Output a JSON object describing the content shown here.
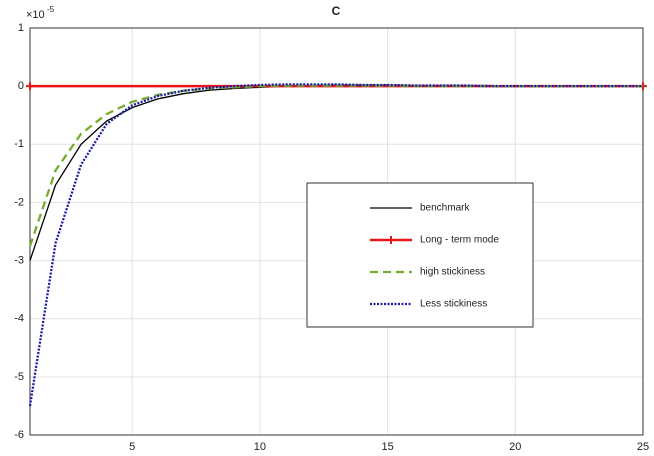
{
  "chart_data": {
    "type": "line",
    "title": "C",
    "y_scale_label": {
      "base": "×10",
      "exponent": "-5"
    },
    "x": [
      1,
      2,
      3,
      4,
      5,
      6,
      7,
      8,
      9,
      10,
      11,
      12,
      13,
      14,
      15,
      16,
      17,
      18,
      19,
      20,
      21,
      22,
      23,
      24,
      25
    ],
    "series": [
      {
        "name": "benchmark",
        "color": "#000000",
        "linestyle": "solid",
        "values": [
          -3.0,
          -1.7,
          -1.0,
          -0.6,
          -0.37,
          -0.22,
          -0.13,
          -0.07,
          -0.04,
          -0.02,
          0,
          0.01,
          0.02,
          0.02,
          0.02,
          0.01,
          0.01,
          0.01,
          0.01,
          0,
          0,
          0,
          0,
          0,
          0
        ]
      },
      {
        "name": "Long - term mode",
        "color": "#e8161b",
        "linestyle": "solid",
        "marker": "+",
        "values": [
          0,
          0,
          0,
          0,
          0,
          0,
          0,
          0,
          0,
          0,
          0,
          0,
          0,
          0,
          0,
          0,
          0,
          0,
          0,
          0,
          0,
          0,
          0,
          0,
          0
        ]
      },
      {
        "name": "high stickiness",
        "color": "#77ac30",
        "linestyle": "dashed",
        "values": [
          -2.75,
          -1.45,
          -0.82,
          -0.48,
          -0.27,
          -0.15,
          -0.08,
          -0.04,
          -0.02,
          0,
          0.01,
          0.01,
          0.01,
          0.01,
          0.01,
          0,
          0,
          0,
          0,
          0,
          0,
          0,
          0,
          0,
          0
        ]
      },
      {
        "name": "Less stickiness",
        "color": "#1a1aa6",
        "linestyle": "dotted",
        "values": [
          -5.5,
          -2.7,
          -1.35,
          -0.65,
          -0.33,
          -0.17,
          -0.08,
          -0.03,
          0,
          0.02,
          0.03,
          0.03,
          0.03,
          0.02,
          0.02,
          0.01,
          0.01,
          0.01,
          0,
          0,
          0,
          0,
          0,
          0,
          0
        ]
      }
    ],
    "xlim": [
      1,
      25
    ],
    "xticks": [
      5,
      10,
      15,
      20,
      25
    ],
    "ylim": [
      -6,
      1
    ],
    "yticks": [
      -6,
      -5,
      -4,
      -3,
      -2,
      -1,
      0,
      1
    ],
    "grid": true,
    "legend": "east"
  }
}
